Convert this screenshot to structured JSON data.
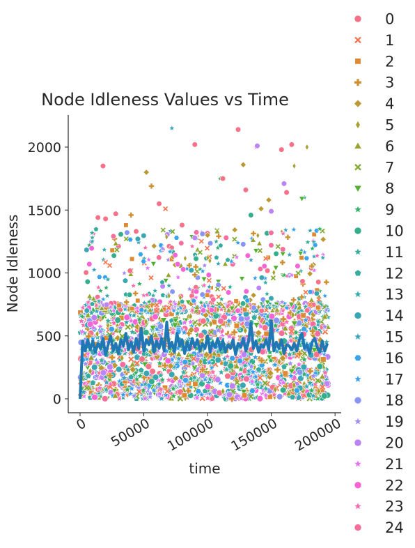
{
  "chart_data": {
    "type": "scatter",
    "title": "Node Idleness Values vs Time",
    "xlabel": "time",
    "ylabel": "Node Idleness",
    "xlim": [
      -7000,
      202000
    ],
    "ylim": [
      -90,
      2260
    ],
    "xticks": [
      0,
      50000,
      100000,
      150000,
      200000
    ],
    "yticks": [
      0,
      500,
      1000,
      1500,
      2000
    ],
    "grid": false,
    "legend_position": "right",
    "series": [
      {
        "name": "0",
        "color": "#f77189",
        "marker": "circle"
      },
      {
        "name": "1",
        "color": "#f7754f",
        "marker": "x"
      },
      {
        "name": "2",
        "color": "#dd8a32",
        "marker": "square"
      },
      {
        "name": "3",
        "color": "#ce9032",
        "marker": "plus"
      },
      {
        "name": "4",
        "color": "#bb9832",
        "marker": "diamond"
      },
      {
        "name": "5",
        "color": "#a89f31",
        "marker": "thin-diamond"
      },
      {
        "name": "6",
        "color": "#97a431",
        "marker": "triangle-up"
      },
      {
        "name": "7",
        "color": "#7ea931",
        "marker": "x"
      },
      {
        "name": "8",
        "color": "#50b131",
        "marker": "triangle-down"
      },
      {
        "name": "9",
        "color": "#32b165",
        "marker": "star"
      },
      {
        "name": "10",
        "color": "#34ae8d",
        "marker": "circle"
      },
      {
        "name": "11",
        "color": "#35ac9e",
        "marker": "star"
      },
      {
        "name": "12",
        "color": "#36ab9f",
        "marker": "pentagon"
      },
      {
        "name": "13",
        "color": "#37a9a9",
        "marker": "star"
      },
      {
        "name": "14",
        "color": "#38a7b3",
        "marker": "circle"
      },
      {
        "name": "15",
        "color": "#39a5c0",
        "marker": "star"
      },
      {
        "name": "16",
        "color": "#3ba3ec",
        "marker": "hexagon"
      },
      {
        "name": "17",
        "color": "#3a9ff0",
        "marker": "star"
      },
      {
        "name": "18",
        "color": "#8795f4",
        "marker": "circle"
      },
      {
        "name": "19",
        "color": "#a28cf4",
        "marker": "star"
      },
      {
        "name": "20",
        "color": "#bb83f4",
        "marker": "circle"
      },
      {
        "name": "21",
        "color": "#e472f4",
        "marker": "star"
      },
      {
        "name": "22",
        "color": "#f564d4",
        "marker": "circle"
      },
      {
        "name": "23",
        "color": "#f66bad",
        "marker": "star"
      },
      {
        "name": "24",
        "color": "#f66e9b",
        "marker": "circle"
      }
    ],
    "mean_line": {
      "color": "#1f77b4",
      "points": [
        [
          0,
          0
        ],
        [
          2000,
          460
        ],
        [
          4000,
          380
        ],
        [
          6000,
          470
        ],
        [
          8000,
          390
        ],
        [
          10000,
          460
        ],
        [
          12000,
          370
        ],
        [
          14000,
          440
        ],
        [
          16000,
          400
        ],
        [
          18000,
          480
        ],
        [
          20000,
          350
        ],
        [
          22000,
          430
        ],
        [
          24000,
          500
        ],
        [
          26000,
          380
        ],
        [
          28000,
          440
        ],
        [
          30000,
          360
        ],
        [
          32000,
          470
        ],
        [
          34000,
          420
        ],
        [
          36000,
          520
        ],
        [
          38000,
          390
        ],
        [
          40000,
          450
        ],
        [
          42000,
          370
        ],
        [
          44000,
          480
        ],
        [
          46000,
          400
        ],
        [
          48000,
          560
        ],
        [
          50000,
          380
        ],
        [
          52000,
          470
        ],
        [
          54000,
          430
        ],
        [
          56000,
          500
        ],
        [
          58000,
          370
        ],
        [
          60000,
          460
        ],
        [
          62000,
          400
        ],
        [
          64000,
          480
        ],
        [
          66000,
          380
        ],
        [
          68000,
          610
        ],
        [
          70000,
          400
        ],
        [
          72000,
          450
        ],
        [
          74000,
          370
        ],
        [
          76000,
          520
        ],
        [
          78000,
          420
        ],
        [
          80000,
          470
        ],
        [
          82000,
          360
        ],
        [
          84000,
          450
        ],
        [
          86000,
          390
        ],
        [
          88000,
          480
        ],
        [
          90000,
          410
        ],
        [
          92000,
          470
        ],
        [
          94000,
          380
        ],
        [
          96000,
          440
        ],
        [
          98000,
          400
        ],
        [
          100000,
          500
        ],
        [
          102000,
          370
        ],
        [
          104000,
          450
        ],
        [
          106000,
          410
        ],
        [
          108000,
          480
        ],
        [
          110000,
          390
        ],
        [
          112000,
          460
        ],
        [
          114000,
          370
        ],
        [
          116000,
          430
        ],
        [
          118000,
          400
        ],
        [
          120000,
          470
        ],
        [
          122000,
          350
        ],
        [
          124000,
          440
        ],
        [
          126000,
          410
        ],
        [
          128000,
          480
        ],
        [
          130000,
          380
        ],
        [
          132000,
          450
        ],
        [
          134000,
          600
        ],
        [
          136000,
          400
        ],
        [
          138000,
          460
        ],
        [
          140000,
          370
        ],
        [
          142000,
          430
        ],
        [
          144000,
          410
        ],
        [
          146000,
          470
        ],
        [
          148000,
          390
        ],
        [
          150000,
          620
        ],
        [
          152000,
          380
        ],
        [
          154000,
          450
        ],
        [
          156000,
          400
        ],
        [
          158000,
          470
        ],
        [
          160000,
          360
        ],
        [
          162000,
          430
        ],
        [
          164000,
          420
        ],
        [
          166000,
          390
        ],
        [
          168000,
          440
        ],
        [
          170000,
          380
        ],
        [
          172000,
          470
        ],
        [
          174000,
          520
        ],
        [
          176000,
          400
        ],
        [
          178000,
          430
        ],
        [
          180000,
          360
        ],
        [
          182000,
          450
        ],
        [
          184000,
          480
        ],
        [
          186000,
          410
        ],
        [
          188000,
          370
        ],
        [
          190000,
          460
        ],
        [
          192000,
          380
        ],
        [
          194000,
          440
        ]
      ]
    },
    "notable_points": [
      [
        18000,
        1850,
        0
      ],
      [
        14000,
        1440,
        0
      ],
      [
        20000,
        1430,
        0
      ],
      [
        28000,
        1470,
        0
      ],
      [
        52000,
        1800,
        4
      ],
      [
        56000,
        1690,
        3
      ],
      [
        67000,
        1510,
        1
      ],
      [
        72000,
        2150,
        15
      ],
      [
        90000,
        2020,
        0
      ],
      [
        110000,
        1750,
        9
      ],
      [
        112000,
        1750,
        0
      ],
      [
        124000,
        2140,
        0
      ],
      [
        128000,
        1860,
        4
      ],
      [
        138000,
        2000,
        23
      ],
      [
        139000,
        2010,
        20
      ],
      [
        148000,
        1580,
        4
      ],
      [
        158000,
        1980,
        0
      ],
      [
        166000,
        2020,
        0
      ],
      [
        178000,
        2000,
        5
      ],
      [
        168000,
        1850,
        5
      ],
      [
        162000,
        1640,
        0
      ],
      [
        160000,
        1710,
        20
      ],
      [
        176000,
        1600,
        11
      ],
      [
        174000,
        1590,
        8
      ],
      [
        62000,
        1550,
        0
      ],
      [
        40000,
        1460,
        3
      ],
      [
        36000,
        1380,
        2
      ],
      [
        44000,
        1330,
        0
      ],
      [
        80000,
        1380,
        0
      ],
      [
        96000,
        1310,
        18
      ],
      [
        100000,
        1300,
        4
      ],
      [
        130000,
        1660,
        0
      ],
      [
        134000,
        1460,
        10
      ],
      [
        142000,
        1510,
        4
      ],
      [
        150000,
        1490,
        20
      ],
      [
        188000,
        1350,
        9
      ]
    ]
  }
}
